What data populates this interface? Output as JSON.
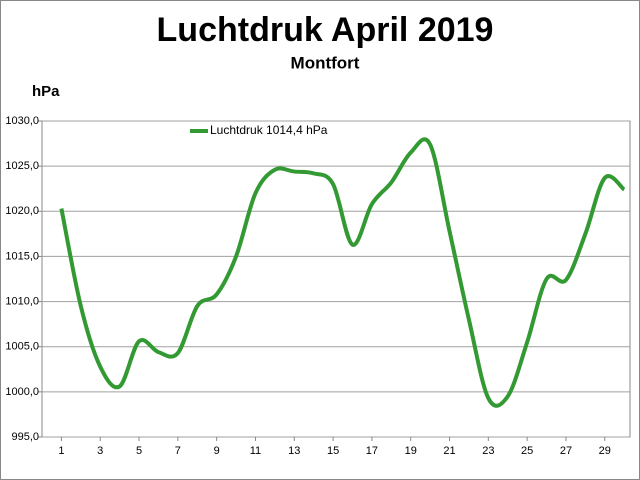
{
  "chart_data": {
    "type": "line",
    "title": "Luchtdruk April 2019",
    "subtitle": "Montfort",
    "y_label": "hPa",
    "x": [
      1,
      2,
      3,
      4,
      5,
      6,
      7,
      8,
      9,
      10,
      11,
      12,
      13,
      14,
      15,
      16,
      17,
      18,
      19,
      20,
      21,
      22,
      23,
      24,
      25,
      26,
      27,
      28,
      29,
      30
    ],
    "xlim": [
      0,
      30.3
    ],
    "xticks": [
      1,
      3,
      5,
      7,
      9,
      11,
      13,
      15,
      17,
      19,
      21,
      23,
      25,
      27,
      29
    ],
    "ylim": [
      995,
      1030
    ],
    "yticks": [
      {
        "value": 995,
        "label": "995,0"
      },
      {
        "value": 1000,
        "label": "1000,0"
      },
      {
        "value": 1005,
        "label": "1005,0"
      },
      {
        "value": 1010,
        "label": "1010,0"
      },
      {
        "value": 1015,
        "label": "1015,0"
      },
      {
        "value": 1020,
        "label": "1020,0"
      },
      {
        "value": 1025,
        "label": "1025,0"
      },
      {
        "value": 1030,
        "label": "1030,0"
      }
    ],
    "grid": true,
    "legend": "top-left",
    "series": [
      {
        "name": "Luchtdruk 1014,4 hPa",
        "color": "#339933",
        "values": [
          1020.3,
          1009.5,
          1002.8,
          1000.6,
          1005.6,
          1004.4,
          1004.3,
          1009.5,
          1010.8,
          1015,
          1022,
          1024.6,
          1024.4,
          1024.2,
          1023,
          1016.3,
          1020.8,
          1023.2,
          1026.5,
          1027.4,
          1017.8,
          1008,
          999.3,
          999.5,
          1005.5,
          1012.5,
          1012.4,
          1017.5,
          1023.7,
          1022.4
        ]
      }
    ]
  }
}
